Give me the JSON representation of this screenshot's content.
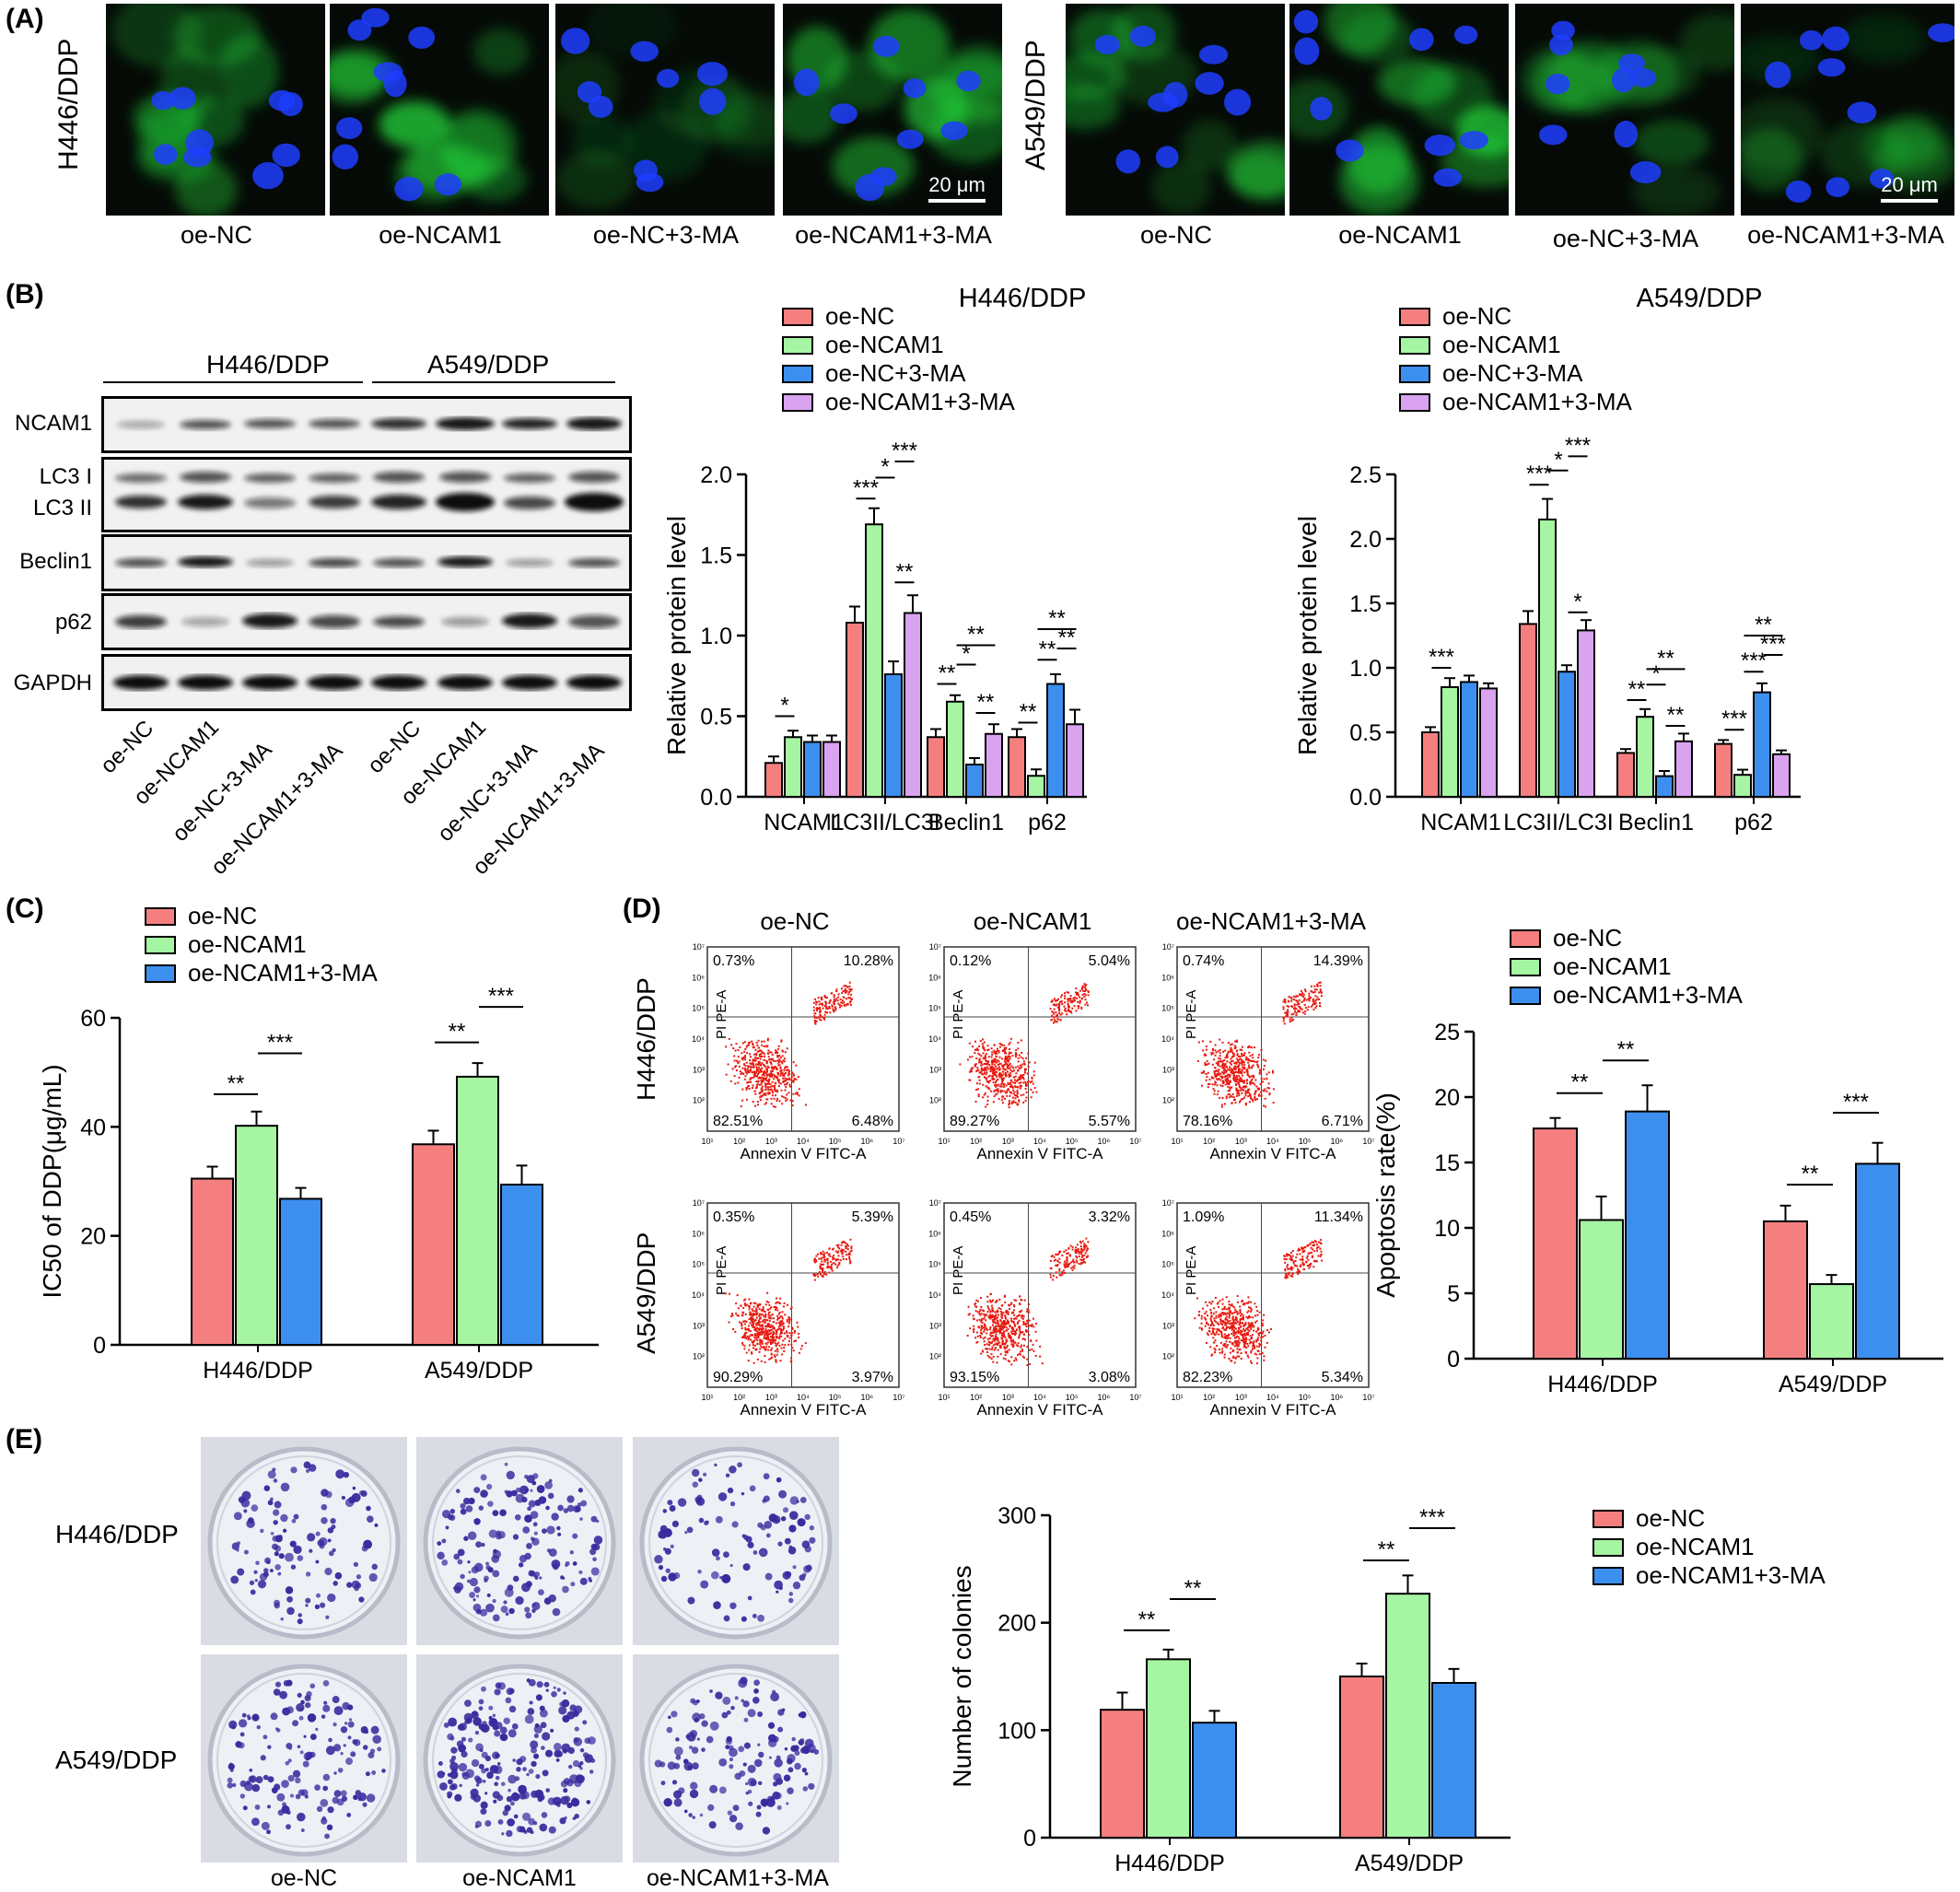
{
  "panels": {
    "A": "(A)",
    "B": "(B)",
    "C": "(C)",
    "D": "(D)",
    "E": "(E)"
  },
  "panel_a": {
    "left_cell": "H446/DDP",
    "right_cell": "A549/DDP",
    "captions_left": [
      "oe-NC",
      "oe-NCAM1",
      "oe-NC+3-MA",
      "oe-NCAM1+3-MA"
    ],
    "captions_right": [
      "oe-NC",
      "oe-NCAM1",
      "oe-NC+3-MA",
      "oe-NCAM1+3-MA"
    ],
    "scale_bar": "20 μm"
  },
  "panel_b_blot": {
    "group_left": "H446/DDP",
    "group_right": "A549/DDP",
    "rows": [
      "NCAM1",
      "LC3 I",
      "LC3 II",
      "Beclin1",
      "p62",
      "GAPDH"
    ],
    "lanes": [
      "oe-NC",
      "oe-NCAM1",
      "oe-NC+3-MA",
      "oe-NCAM1+3-MA",
      "oe-NC",
      "oe-NCAM1",
      "oe-NC+3-MA",
      "oe-NCAM1+3-MA"
    ]
  },
  "panel_d": {
    "columns": [
      "oe-NC",
      "oe-NCAM1",
      "oe-NCAM1+3-MA"
    ],
    "rows": [
      "H446/DDP",
      "A549/DDP"
    ],
    "ylabel": "PI PE-A",
    "xlabel": "Annexin V FITC-A",
    "quadrants": [
      [
        [
          "0.73%",
          "10.28%",
          "82.51%",
          "6.48%"
        ],
        [
          "0.12%",
          "5.04%",
          "89.27%",
          "5.57%"
        ],
        [
          "0.74%",
          "14.39%",
          "78.16%",
          "6.71%"
        ]
      ],
      [
        [
          "0.35%",
          "5.39%",
          "90.29%",
          "3.97%"
        ],
        [
          "0.45%",
          "3.32%",
          "93.15%",
          "3.08%"
        ],
        [
          "1.09%",
          "11.34%",
          "82.23%",
          "5.34%"
        ]
      ]
    ]
  },
  "panel_e": {
    "rows": [
      "H446/DDP",
      "A549/DDP"
    ],
    "columns": [
      "oe-NC",
      "oe-NCAM1",
      "oe-NCAM1+3-MA"
    ]
  },
  "colors": {
    "red": "#f57f7f",
    "green": "#a6f5a3",
    "blue": "#3d8fef",
    "purple": "#d9a3ef"
  },
  "chart_data": [
    {
      "id": "B1",
      "type": "bar",
      "title": "H446/DDP",
      "ylabel": "Relative protein level",
      "ylim": [
        0,
        2.0
      ],
      "yticks": [
        "0.0",
        "0.5",
        "1.0",
        "1.5",
        "2.0"
      ],
      "categories": [
        "NCAM1",
        "LC3II/LC3I",
        "Beclin1",
        "p62"
      ],
      "series": [
        {
          "name": "oe-NC",
          "values": [
            0.21,
            1.08,
            0.37,
            0.37
          ],
          "errors": [
            0.04,
            0.1,
            0.05,
            0.05
          ]
        },
        {
          "name": "oe-NCAM1",
          "values": [
            0.37,
            1.69,
            0.59,
            0.13
          ],
          "errors": [
            0.04,
            0.1,
            0.04,
            0.04
          ]
        },
        {
          "name": "oe-NC+3-MA",
          "values": [
            0.34,
            0.76,
            0.2,
            0.7
          ],
          "errors": [
            0.04,
            0.08,
            0.04,
            0.06
          ]
        },
        {
          "name": "oe-NCAM1+3-MA",
          "values": [
            0.34,
            1.14,
            0.39,
            0.45
          ],
          "errors": [
            0.04,
            0.11,
            0.06,
            0.09
          ]
        }
      ],
      "annotations": [
        {
          "cat": 0,
          "a": 0,
          "b": 1,
          "y": 0.5,
          "label": "*"
        },
        {
          "cat": 1,
          "a": 0,
          "b": 1,
          "y": 1.85,
          "label": "***"
        },
        {
          "cat": 1,
          "a": 1,
          "b": 2,
          "y": 1.98,
          "label": "*"
        },
        {
          "cat": 1,
          "a": 2,
          "b": 3,
          "y": 2.08,
          "label": "***"
        },
        {
          "cat": 1,
          "a": 2,
          "b": 3,
          "y": 1.33,
          "label": "**"
        },
        {
          "cat": 2,
          "a": 0,
          "b": 1,
          "y": 0.7,
          "label": "**"
        },
        {
          "cat": 2,
          "a": 1,
          "b": 2,
          "y": 0.82,
          "label": "*"
        },
        {
          "cat": 2,
          "a": 1,
          "b": 3,
          "y": 0.94,
          "label": "**"
        },
        {
          "cat": 2,
          "a": 2,
          "b": 3,
          "y": 0.52,
          "label": "**"
        },
        {
          "cat": 3,
          "a": 0,
          "b": 1,
          "y": 0.46,
          "label": "**"
        },
        {
          "cat": 3,
          "a": 1,
          "b": 2,
          "y": 0.85,
          "label": "**"
        },
        {
          "cat": 3,
          "a": 1,
          "b": 3,
          "y": 1.04,
          "label": "**"
        },
        {
          "cat": 3,
          "a": 2,
          "b": 3,
          "y": 0.92,
          "label": "**"
        }
      ]
    },
    {
      "id": "B2",
      "type": "bar",
      "title": "A549/DDP",
      "ylabel": "Relative protein level",
      "ylim": [
        0,
        2.5
      ],
      "yticks": [
        "0.0",
        "0.5",
        "1.0",
        "1.5",
        "2.0",
        "2.5"
      ],
      "categories": [
        "NCAM1",
        "LC3II/LC3I",
        "Beclin1",
        "p62"
      ],
      "series": [
        {
          "name": "oe-NC",
          "values": [
            0.5,
            1.34,
            0.34,
            0.41
          ],
          "errors": [
            0.04,
            0.1,
            0.03,
            0.03
          ]
        },
        {
          "name": "oe-NCAM1",
          "values": [
            0.85,
            2.15,
            0.62,
            0.17
          ],
          "errors": [
            0.07,
            0.16,
            0.06,
            0.04
          ]
        },
        {
          "name": "oe-NC+3-MA",
          "values": [
            0.89,
            0.97,
            0.16,
            0.81
          ],
          "errors": [
            0.05,
            0.05,
            0.04,
            0.07
          ]
        },
        {
          "name": "oe-NCAM1+3-MA",
          "values": [
            0.84,
            1.29,
            0.43,
            0.33
          ],
          "errors": [
            0.04,
            0.08,
            0.06,
            0.03
          ]
        }
      ],
      "annotations": [
        {
          "cat": 0,
          "a": 0,
          "b": 1,
          "y": 1.0,
          "label": "***"
        },
        {
          "cat": 1,
          "a": 0,
          "b": 1,
          "y": 2.42,
          "label": "***"
        },
        {
          "cat": 1,
          "a": 1,
          "b": 2,
          "y": 2.53,
          "label": "*"
        },
        {
          "cat": 1,
          "a": 2,
          "b": 3,
          "y": 2.64,
          "label": "***"
        },
        {
          "cat": 1,
          "a": 2,
          "b": 3,
          "y": 1.43,
          "label": "*"
        },
        {
          "cat": 2,
          "a": 0,
          "b": 1,
          "y": 0.75,
          "label": "**"
        },
        {
          "cat": 2,
          "a": 1,
          "b": 2,
          "y": 0.87,
          "label": "*"
        },
        {
          "cat": 2,
          "a": 1,
          "b": 3,
          "y": 0.99,
          "label": "**"
        },
        {
          "cat": 2,
          "a": 2,
          "b": 3,
          "y": 0.55,
          "label": "**"
        },
        {
          "cat": 3,
          "a": 0,
          "b": 1,
          "y": 0.52,
          "label": "***"
        },
        {
          "cat": 3,
          "a": 1,
          "b": 2,
          "y": 0.97,
          "label": "***"
        },
        {
          "cat": 3,
          "a": 1,
          "b": 3,
          "y": 1.25,
          "label": "**"
        },
        {
          "cat": 3,
          "a": 2,
          "b": 3,
          "y": 1.1,
          "label": "***"
        }
      ]
    },
    {
      "id": "C",
      "type": "bar",
      "title": "",
      "ylabel": "IC50 of DDP(μg/mL)",
      "ylim": [
        0,
        60
      ],
      "yticks": [
        "0",
        "20",
        "40",
        "60"
      ],
      "categories": [
        "H446/DDP",
        "A549/DDP"
      ],
      "series": [
        {
          "name": "oe-NC",
          "values": [
            30.5,
            36.8
          ],
          "errors": [
            2.2,
            2.5
          ]
        },
        {
          "name": "oe-NCAM1",
          "values": [
            40.2,
            49.2
          ],
          "errors": [
            2.6,
            2.5
          ]
        },
        {
          "name": "oe-NCAM1+3-MA",
          "values": [
            26.8,
            29.4
          ],
          "errors": [
            2.0,
            3.5
          ]
        }
      ],
      "annotations": [
        {
          "cat": 0,
          "a": 0,
          "b": 1,
          "y": 46,
          "label": "**"
        },
        {
          "cat": 0,
          "a": 1,
          "b": 2,
          "y": 53.5,
          "label": "***"
        },
        {
          "cat": 1,
          "a": 0,
          "b": 1,
          "y": 55.5,
          "label": "**"
        },
        {
          "cat": 1,
          "a": 1,
          "b": 2,
          "y": 62,
          "label": "***"
        }
      ]
    },
    {
      "id": "D",
      "type": "bar",
      "title": "",
      "ylabel": "Apoptosis rate(%)",
      "ylim": [
        0,
        25
      ],
      "yticks": [
        "0",
        "5",
        "10",
        "15",
        "20",
        "25"
      ],
      "categories": [
        "H446/DDP",
        "A549/DDP"
      ],
      "series": [
        {
          "name": "oe-NC",
          "values": [
            17.6,
            10.5
          ],
          "errors": [
            0.8,
            1.2
          ]
        },
        {
          "name": "oe-NCAM1",
          "values": [
            10.6,
            5.7
          ],
          "errors": [
            1.8,
            0.7
          ]
        },
        {
          "name": "oe-NCAM1+3-MA",
          "values": [
            18.9,
            14.9
          ],
          "errors": [
            2.0,
            1.6
          ]
        }
      ],
      "annotations": [
        {
          "cat": 0,
          "a": 0,
          "b": 1,
          "y": 20.3,
          "label": "**"
        },
        {
          "cat": 0,
          "a": 1,
          "b": 2,
          "y": 22.8,
          "label": "**"
        },
        {
          "cat": 1,
          "a": 0,
          "b": 1,
          "y": 13.3,
          "label": "**"
        },
        {
          "cat": 1,
          "a": 1,
          "b": 2,
          "y": 18.8,
          "label": "***"
        }
      ]
    },
    {
      "id": "E",
      "type": "bar",
      "title": "",
      "ylabel": "Number of colonies",
      "ylim": [
        0,
        300
      ],
      "yticks": [
        "0",
        "100",
        "200",
        "300"
      ],
      "categories": [
        "H446/DDP",
        "A549/DDP"
      ],
      "series": [
        {
          "name": "oe-NC",
          "values": [
            119,
            150
          ],
          "errors": [
            16,
            12
          ]
        },
        {
          "name": "oe-NCAM1",
          "values": [
            166,
            227
          ],
          "errors": [
            9,
            17
          ]
        },
        {
          "name": "oe-NCAM1+3-MA",
          "values": [
            107,
            144
          ],
          "errors": [
            11,
            13
          ]
        }
      ],
      "annotations": [
        {
          "cat": 0,
          "a": 0,
          "b": 1,
          "y": 193,
          "label": "**"
        },
        {
          "cat": 0,
          "a": 1,
          "b": 2,
          "y": 222,
          "label": "**"
        },
        {
          "cat": 1,
          "a": 0,
          "b": 1,
          "y": 258,
          "label": "**"
        },
        {
          "cat": 1,
          "a": 1,
          "b": 2,
          "y": 288,
          "label": "***"
        }
      ]
    }
  ]
}
